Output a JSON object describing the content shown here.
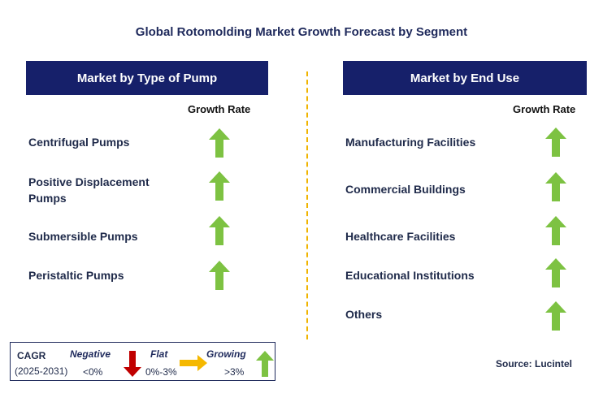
{
  "title": "Global Rotomolding Market Growth Forecast by Segment",
  "left_panel": {
    "header": "Market by Type of Pump",
    "growth_label": "Growth Rate",
    "items": [
      {
        "line1": "Centrifugal Pumps",
        "line2": ""
      },
      {
        "line1": "Positive Displacement",
        "line2": "Pumps"
      },
      {
        "line1": "Submersible Pumps",
        "line2": ""
      },
      {
        "line1": "Peristaltic Pumps",
        "line2": ""
      }
    ]
  },
  "right_panel": {
    "header": "Market by End Use",
    "growth_label": "Growth Rate",
    "items": [
      {
        "line1": "Manufacturing Facilities"
      },
      {
        "line1": "Commercial Buildings"
      },
      {
        "line1": "Healthcare Facilities"
      },
      {
        "line1": "Educational Institutions"
      },
      {
        "line1": "Others"
      }
    ]
  },
  "legend": {
    "cagr": "CAGR",
    "period": "(2025-2031)",
    "negative_label": "Negative",
    "negative_range": "<0%",
    "flat_label": "Flat",
    "flat_range": "0%-3%",
    "growing_label": "Growing",
    "growing_range": ">3%"
  },
  "source": "Source: Lucintel",
  "colors": {
    "header_bg": "#16206a",
    "growth_arrow": "#7dc242",
    "negative_arrow": "#c00000",
    "flat_arrow": "#f5b800",
    "divider": "#f0b400"
  },
  "icons": {
    "growth": "up-arrow-icon",
    "negative": "down-arrow-icon",
    "flat": "right-arrow-icon"
  }
}
